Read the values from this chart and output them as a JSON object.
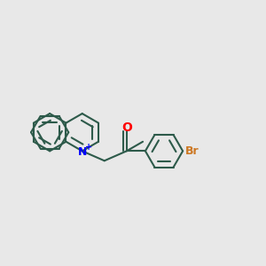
{
  "background_color": "#e8e8e8",
  "bond_color": "#2d5a4a",
  "bond_width": 1.5,
  "N_color": "#0000ff",
  "O_color": "#ff0000",
  "Br_color": "#cc7722",
  "figsize": [
    3.0,
    3.0
  ],
  "dpi": 100,
  "xlim": [
    0.05,
    1.95
  ],
  "ylim": [
    0.1,
    0.9
  ]
}
